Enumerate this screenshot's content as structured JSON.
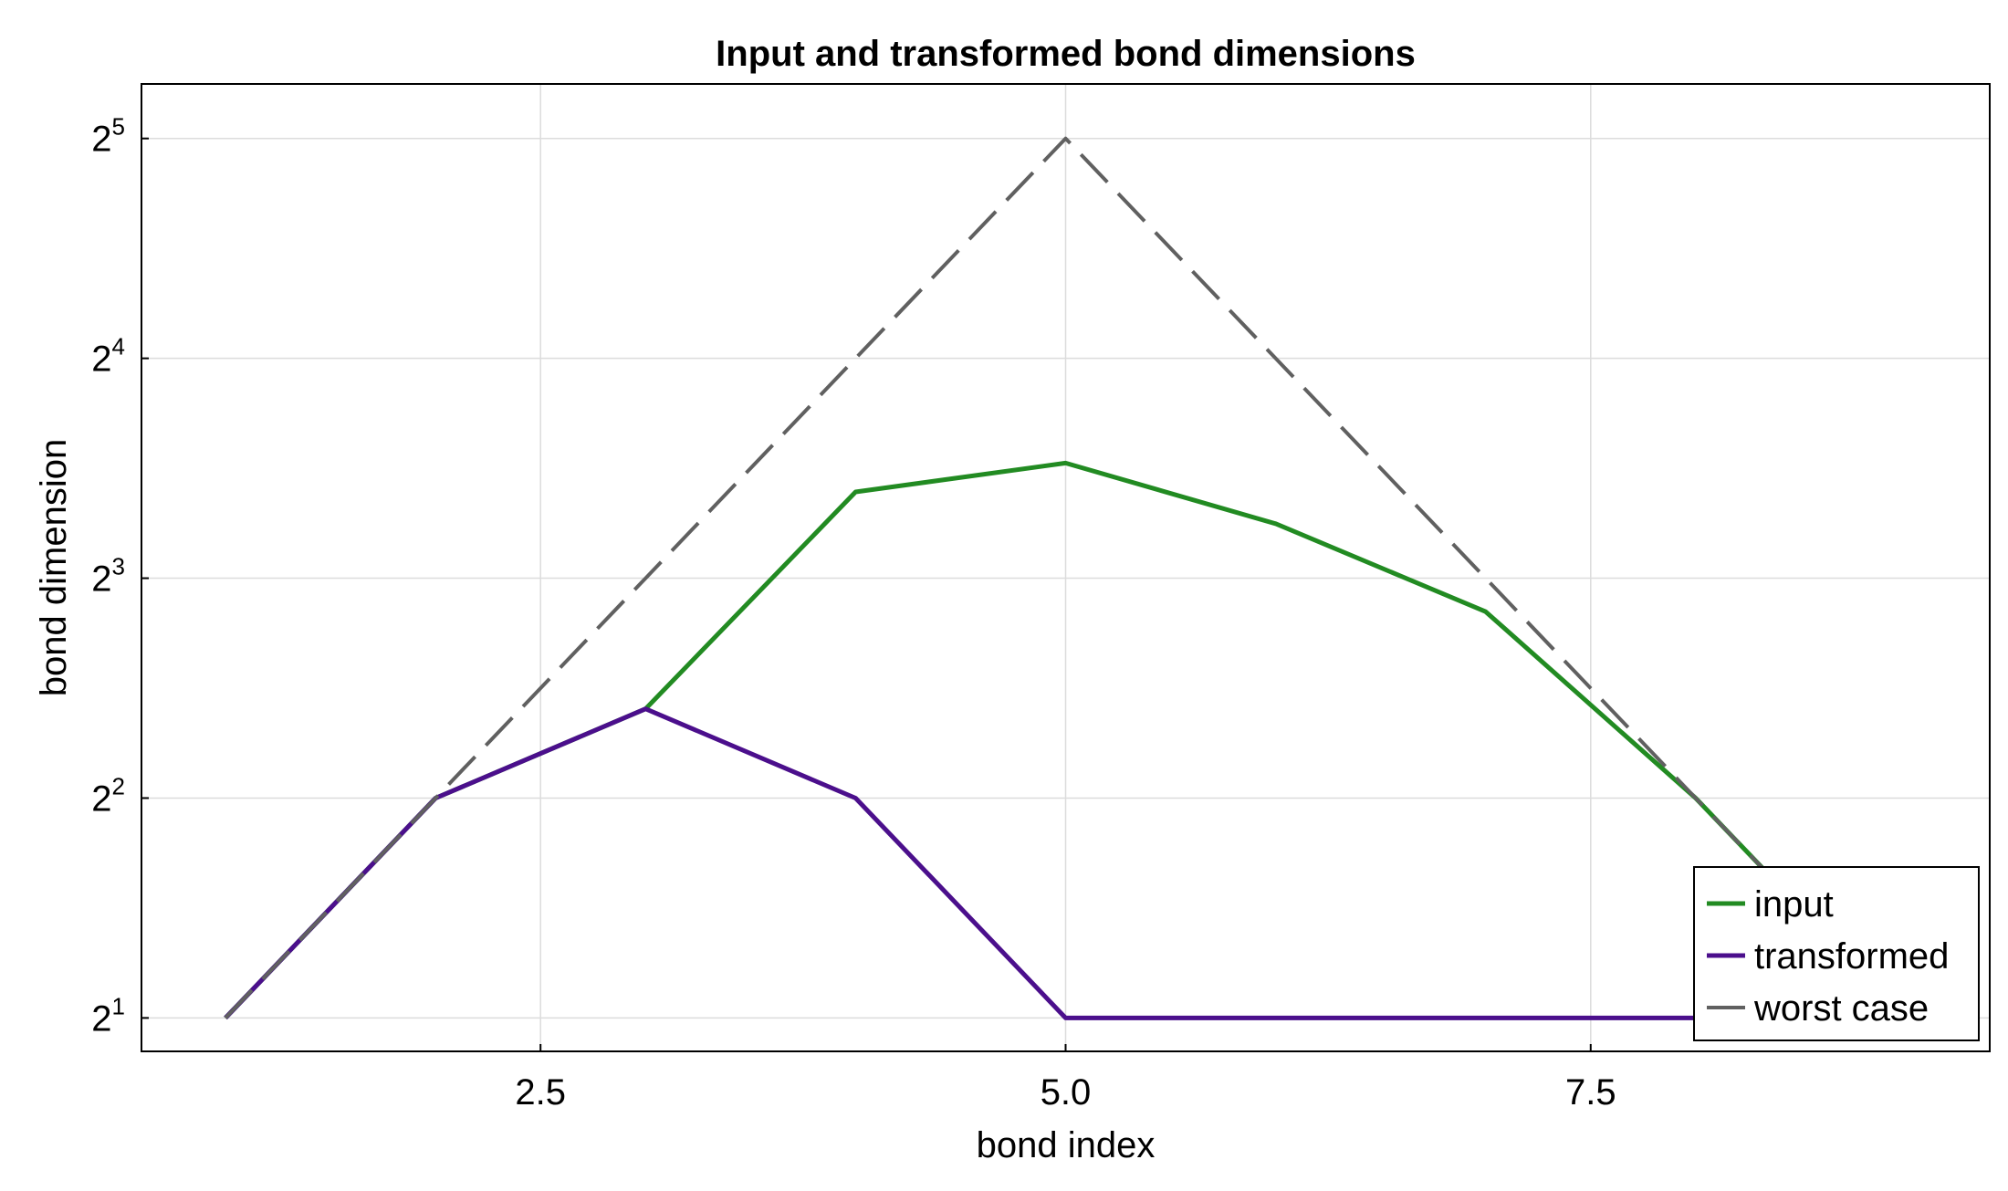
{
  "chart_data": {
    "type": "line",
    "title": "Input and transformed bond dimensions",
    "xlabel": "bond index",
    "ylabel": "bond dimension",
    "y_scale": "log2",
    "xlim": [
      0.6,
      9.4
    ],
    "ylim": [
      1.8,
      38.0
    ],
    "x_ticks": [
      {
        "value": 2.5,
        "label": "2.5"
      },
      {
        "value": 5.0,
        "label": "5.0"
      },
      {
        "value": 7.5,
        "label": "7.5"
      }
    ],
    "y_ticks": [
      {
        "value": 2,
        "base": "2",
        "exp": "1"
      },
      {
        "value": 4,
        "base": "2",
        "exp": "2"
      },
      {
        "value": 8,
        "base": "2",
        "exp": "3"
      },
      {
        "value": 16,
        "base": "2",
        "exp": "4"
      },
      {
        "value": 32,
        "base": "2",
        "exp": "5"
      }
    ],
    "grid": true,
    "legend_position": "bottom-right",
    "series": [
      {
        "name": "input",
        "color": "#228b22",
        "style": "solid",
        "x": [
          1,
          2,
          3,
          4,
          5,
          6,
          7,
          8,
          9
        ],
        "y": [
          2,
          4,
          5.3,
          10.5,
          11.5,
          9.5,
          7.2,
          4,
          2
        ]
      },
      {
        "name": "transformed",
        "color": "#4b0f8c",
        "style": "solid",
        "x": [
          1,
          2,
          3,
          4,
          5,
          6,
          7,
          8,
          9
        ],
        "y": [
          2,
          4,
          5.3,
          4,
          2,
          2,
          2,
          2,
          2
        ]
      },
      {
        "name": "worst case",
        "color": "#606060",
        "style": "dashed",
        "x": [
          1,
          2,
          3,
          4,
          5,
          6,
          7,
          8,
          9
        ],
        "y": [
          2,
          4,
          8,
          16,
          32,
          16,
          8,
          4,
          2
        ]
      }
    ]
  }
}
